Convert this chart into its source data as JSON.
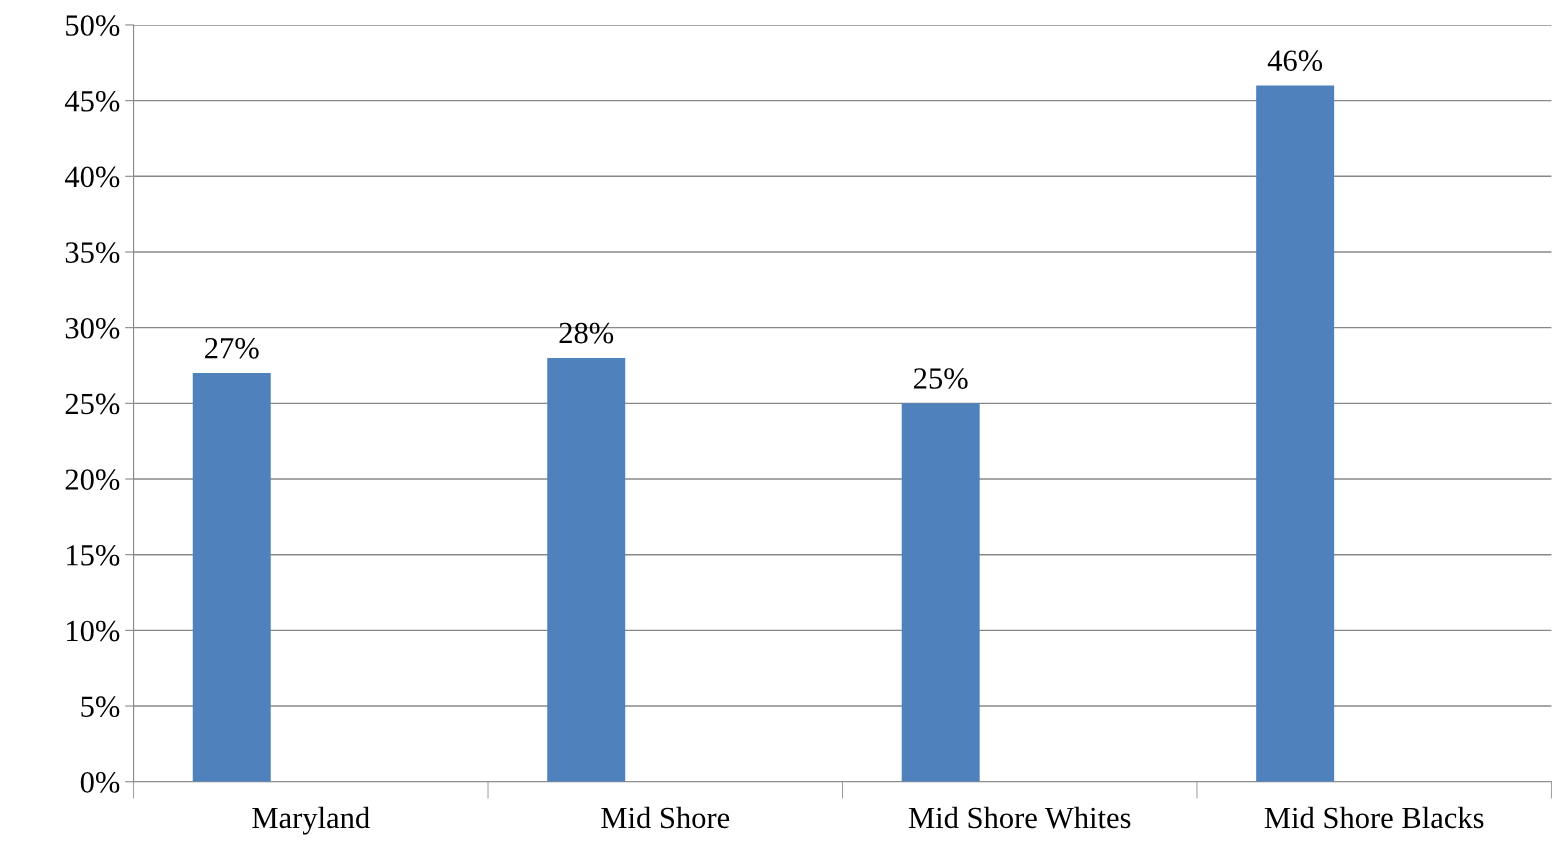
{
  "chart_data": {
    "type": "bar",
    "categories": [
      "Maryland",
      "Mid Shore",
      "Mid Shore Whites",
      "Mid Shore Blacks"
    ],
    "values": [
      27,
      28,
      25,
      46
    ],
    "value_labels": [
      "27%",
      "28%",
      "25%",
      "46%"
    ],
    "color": "#4f81bd",
    "ylim": [
      0,
      50
    ],
    "yticks": [
      {
        "value": 0,
        "label": "0%"
      },
      {
        "value": 5,
        "label": "5%"
      },
      {
        "value": 10,
        "label": "10%"
      },
      {
        "value": 15,
        "label": "15%"
      },
      {
        "value": 20,
        "label": "20%"
      },
      {
        "value": 25,
        "label": "25%"
      },
      {
        "value": 30,
        "label": "30%"
      },
      {
        "value": 35,
        "label": "35%"
      },
      {
        "value": 40,
        "label": "40%"
      },
      {
        "value": 45,
        "label": "45%"
      },
      {
        "value": 50,
        "label": "50%"
      }
    ],
    "grid": "y",
    "legend": false
  }
}
